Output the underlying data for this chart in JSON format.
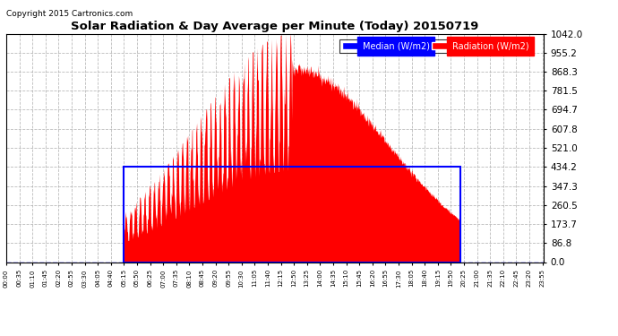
{
  "title": "Solar Radiation & Day Average per Minute (Today) 20150719",
  "copyright": "Copyright 2015 Cartronics.com",
  "legend_median": "Median (W/m2)",
  "legend_radiation": "Radiation (W/m2)",
  "yticks": [
    0.0,
    86.8,
    173.7,
    260.5,
    347.3,
    434.2,
    521.0,
    607.8,
    694.7,
    781.5,
    868.3,
    955.2,
    1042.0
  ],
  "ytick_labels": [
    "0.0",
    "86.8",
    "173.7",
    "260.5",
    "347.3",
    "434.2",
    "521.0",
    "607.8",
    "694.7",
    "781.5",
    "868.3",
    "955.2",
    "1042.0"
  ],
  "ymax": 1042.0,
  "ymin": 0.0,
  "bg_color": "#ffffff",
  "plot_bg_color": "#ffffff",
  "radiation_color": "#ff0000",
  "median_color": "#0000ff",
  "grid_color": "#aaaaaa",
  "median_value": 434.2,
  "sunrise_minute": 315,
  "sunset_minute": 1215,
  "n_minutes": 1440,
  "tick_interval": 35
}
